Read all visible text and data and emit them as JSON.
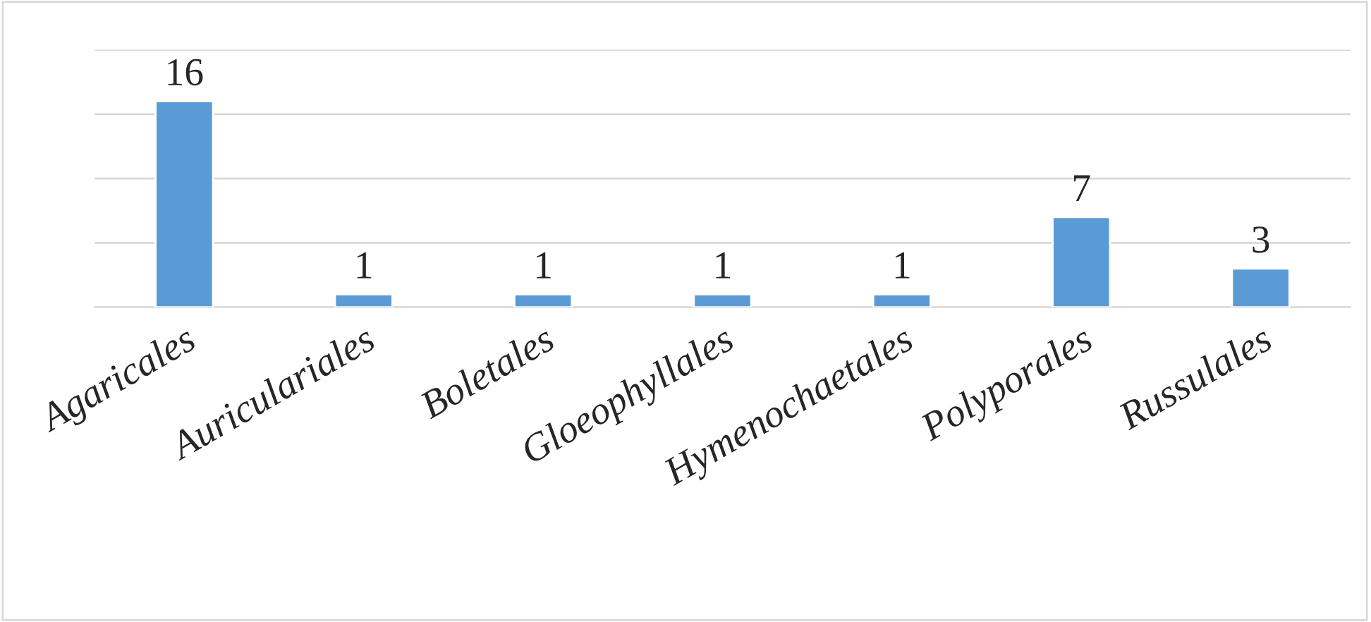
{
  "chart_data": {
    "type": "bar",
    "categories": [
      "Agaricales",
      "Auriculariales",
      "Boletales",
      "Gloeophyllales",
      "Hymenochaetales",
      "Polyporales",
      "Russulales"
    ],
    "values": [
      16,
      1,
      1,
      1,
      1,
      7,
      3
    ],
    "color": "#5b9bd5",
    "data_labels": true,
    "ylim": [
      0,
      20
    ],
    "yticks": [
      {
        "value": 0,
        "label": null
      },
      {
        "value": 5,
        "label": null
      },
      {
        "value": 10,
        "label": null
      },
      {
        "value": 15,
        "label": null
      },
      {
        "value": 20,
        "label": null
      }
    ],
    "tick_labels": "x",
    "grid": "y",
    "legend": false
  }
}
